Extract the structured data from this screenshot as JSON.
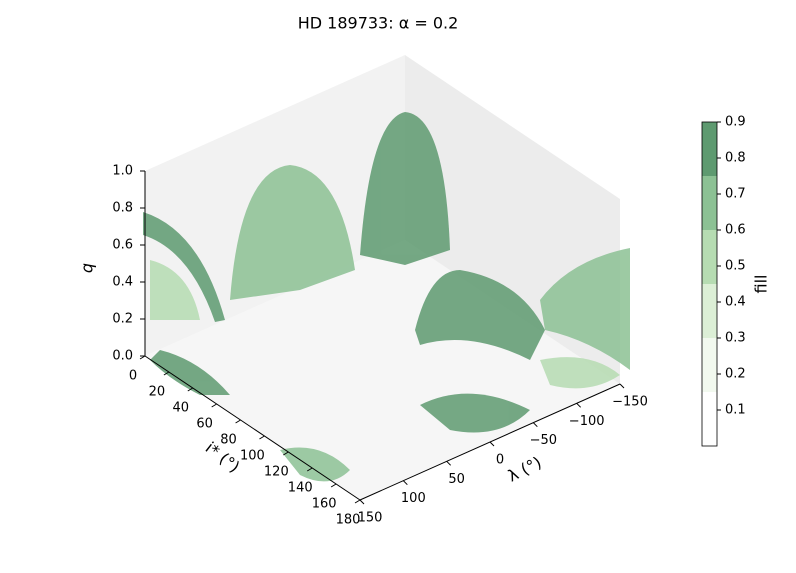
{
  "chart_data": {
    "type": "surface3d",
    "title": "HD 189733:  α = 0.2",
    "xlabel": "i* (°)",
    "ylabel": "λ (°)",
    "zlabel": "q",
    "xlim": [
      0,
      180
    ],
    "xticks": [
      0,
      20,
      40,
      60,
      80,
      100,
      120,
      140,
      160,
      180
    ],
    "ylim": [
      150,
      -150
    ],
    "yticks": [
      150,
      100,
      50,
      0,
      {
        "value": -50,
        "label": "−50"
      },
      {
        "value": -100,
        "label": "−100"
      },
      {
        "value": -150,
        "label": "−150"
      }
    ],
    "zlim": [
      0,
      1
    ],
    "zticks": [
      {
        "value": 0,
        "label": "0.0"
      },
      0.2,
      0.4,
      0.6,
      0.8,
      {
        "value": 1,
        "label": "1.0"
      }
    ],
    "colorbar": {
      "label": "fill",
      "levels": [
        0,
        0.15,
        0.3,
        0.45,
        0.6,
        0.75,
        0.9
      ],
      "colors": [
        "#ffffff",
        "#f2f9ef",
        "#dcefd6",
        "#b6dcb2",
        "#8cc194",
        "#5e9a70"
      ],
      "ticks": [
        0.1,
        0.2,
        0.3,
        0.4,
        0.5,
        0.6,
        0.7,
        0.8,
        0.9
      ]
    }
  }
}
